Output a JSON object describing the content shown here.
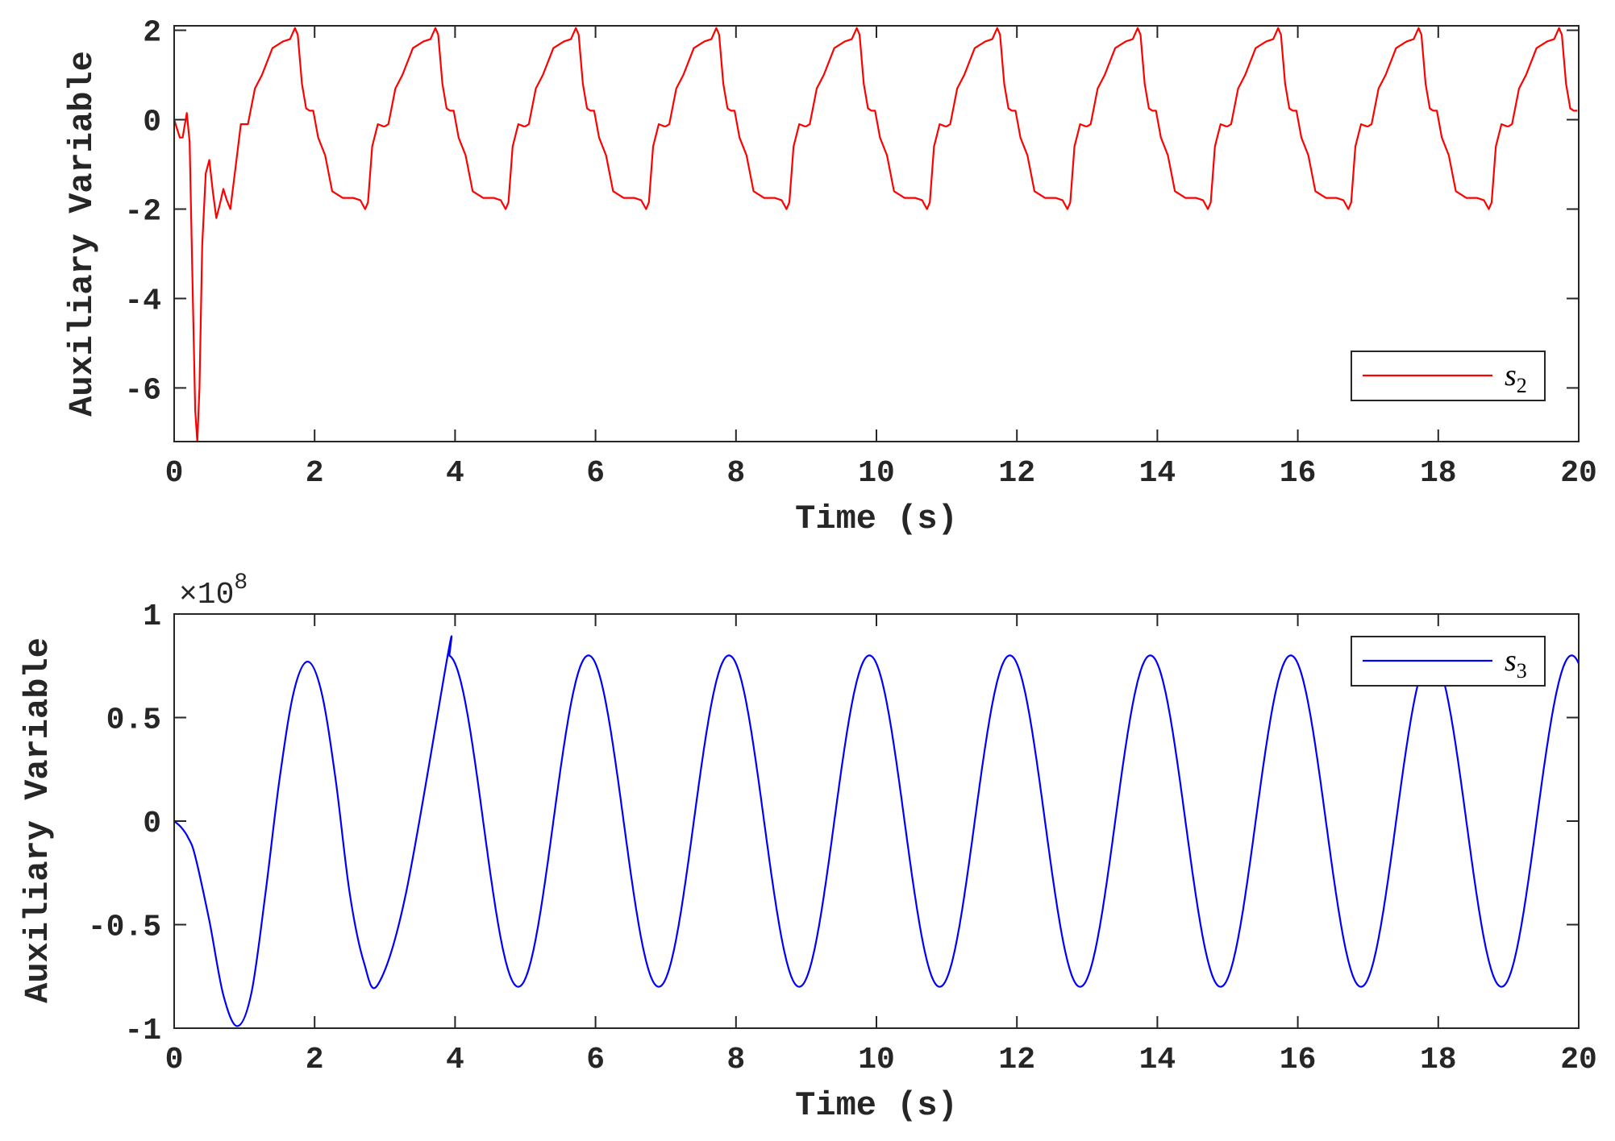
{
  "colors": {
    "axis": "#262626",
    "s2": "#ff0000",
    "s3": "#0000ff",
    "background": "#ffffff"
  },
  "chart_data": [
    {
      "type": "line",
      "xlabel": "Time (s)",
      "ylabel": "Auxiliary Variable",
      "xlim": [
        0,
        20
      ],
      "ylim": [
        -7.2,
        2.1
      ],
      "xticks": [
        0,
        2,
        4,
        6,
        8,
        10,
        12,
        14,
        16,
        18,
        20
      ],
      "xtick_labels": [
        "0",
        "2",
        "4",
        "6",
        "8",
        "10",
        "12",
        "14",
        "16",
        "18",
        "20"
      ],
      "yticks": [
        -6,
        -4,
        -2,
        0,
        2
      ],
      "ytick_labels": [
        "-6",
        "-4",
        "-2",
        "0",
        "2"
      ],
      "grid": false,
      "legend_position": "bottom-right",
      "series": [
        {
          "legend_symbol": "s",
          "legend_subscript": "2",
          "color": "#ff0000",
          "description": "periodic sawtooth-like response, period 2 s, range about -2 to 2, large initial dip to about -7.2 near t = 0.35 s",
          "x": [
            0,
            0.08,
            0.12,
            0.18,
            0.22,
            0.26,
            0.3,
            0.33,
            0.36,
            0.4,
            0.45,
            0.5,
            0.55,
            0.6,
            0.65,
            0.7,
            0.75,
            0.8,
            0.88,
            0.95,
            1.05,
            1.15,
            1.25,
            1.4,
            1.55,
            1.65,
            1.72,
            1.76,
            1.82,
            1.88,
            1.93,
            1.98,
            2.05,
            2.15,
            2.25,
            2.4,
            2.55,
            2.65,
            2.72,
            2.76,
            2.82,
            2.9,
            2.98,
            3.05
          ],
          "y": [
            0,
            -0.4,
            -0.4,
            0.15,
            -0.5,
            -3.5,
            -6.5,
            -7.2,
            -6.0,
            -2.8,
            -1.2,
            -0.9,
            -1.6,
            -2.2,
            -1.9,
            -1.55,
            -1.8,
            -2.0,
            -1.0,
            -0.1,
            -0.1,
            0.7,
            1.0,
            1.6,
            1.75,
            1.8,
            2.05,
            1.9,
            0.8,
            0.25,
            0.2,
            0.2,
            -0.4,
            -0.8,
            -1.6,
            -1.75,
            -1.75,
            -1.8,
            -2.0,
            -1.85,
            -0.6,
            -0.1,
            -0.15,
            0.3
          ],
          "period": 2,
          "period_from_x": 1,
          "cycle_x": [
            1.0,
            1.05,
            1.15,
            1.25,
            1.4,
            1.55,
            1.65,
            1.72,
            1.76,
            1.82,
            1.88,
            1.93,
            1.98,
            2.05,
            2.15,
            2.25,
            2.4,
            2.55,
            2.65,
            2.72,
            2.76,
            2.82,
            2.9,
            2.98,
            3.0
          ],
          "cycle_y": [
            -0.15,
            -0.1,
            0.7,
            1.0,
            1.6,
            1.75,
            1.8,
            2.05,
            1.9,
            0.8,
            0.25,
            0.2,
            0.2,
            -0.4,
            -0.8,
            -1.6,
            -1.75,
            -1.75,
            -1.8,
            -2.0,
            -1.85,
            -0.6,
            -0.1,
            -0.15,
            -0.15
          ]
        }
      ]
    },
    {
      "type": "line",
      "xlabel": "Time (s)",
      "ylabel": "Auxiliary Variable",
      "exponent_label": "×10",
      "exponent_power": "8",
      "xlim": [
        0,
        20
      ],
      "ylim": [
        -1,
        1
      ],
      "xticks": [
        0,
        2,
        4,
        6,
        8,
        10,
        12,
        14,
        16,
        18,
        20
      ],
      "xtick_labels": [
        "0",
        "2",
        "4",
        "6",
        "8",
        "10",
        "12",
        "14",
        "16",
        "18",
        "20"
      ],
      "yticks": [
        -1,
        -0.5,
        0,
        0.5,
        1
      ],
      "ytick_labels": [
        "-1",
        "-0.5",
        "0",
        "0.5",
        "1"
      ],
      "grid": false,
      "legend_position": "top-right",
      "series": [
        {
          "legend_symbol": "s",
          "legend_subscript": "3",
          "color": "#0000ff",
          "description": "sinusoid of period 2 s, amplitude about 0.8 (x10^8), initial trough of -0.99 near t = 0.9 s, first peak 0.77 near t = 1.9 s",
          "x": [
            0,
            0.1,
            0.2,
            0.3,
            0.5,
            0.7,
            0.9,
            1.1,
            1.3,
            1.5,
            1.7,
            1.9,
            2.1,
            2.3,
            2.5,
            2.7,
            2.9,
            3.3,
            3.9
          ],
          "y": [
            0,
            -0.03,
            -0.08,
            -0.17,
            -0.48,
            -0.84,
            -0.99,
            -0.83,
            -0.35,
            0.2,
            0.62,
            0.77,
            0.62,
            0.2,
            -0.35,
            -0.68,
            -0.79,
            -0.35,
            0.81
          ],
          "steady_amplitude": 0.8,
          "steady_period": 2,
          "steady_peak_times": [
            3.9,
            5.9,
            7.9,
            9.9,
            11.9,
            13.9,
            15.9,
            17.9,
            19.9
          ],
          "steady_trough_times": [
            2.9,
            4.9,
            6.9,
            8.9,
            10.9,
            12.9,
            14.9,
            16.9,
            18.9
          ]
        }
      ]
    }
  ]
}
